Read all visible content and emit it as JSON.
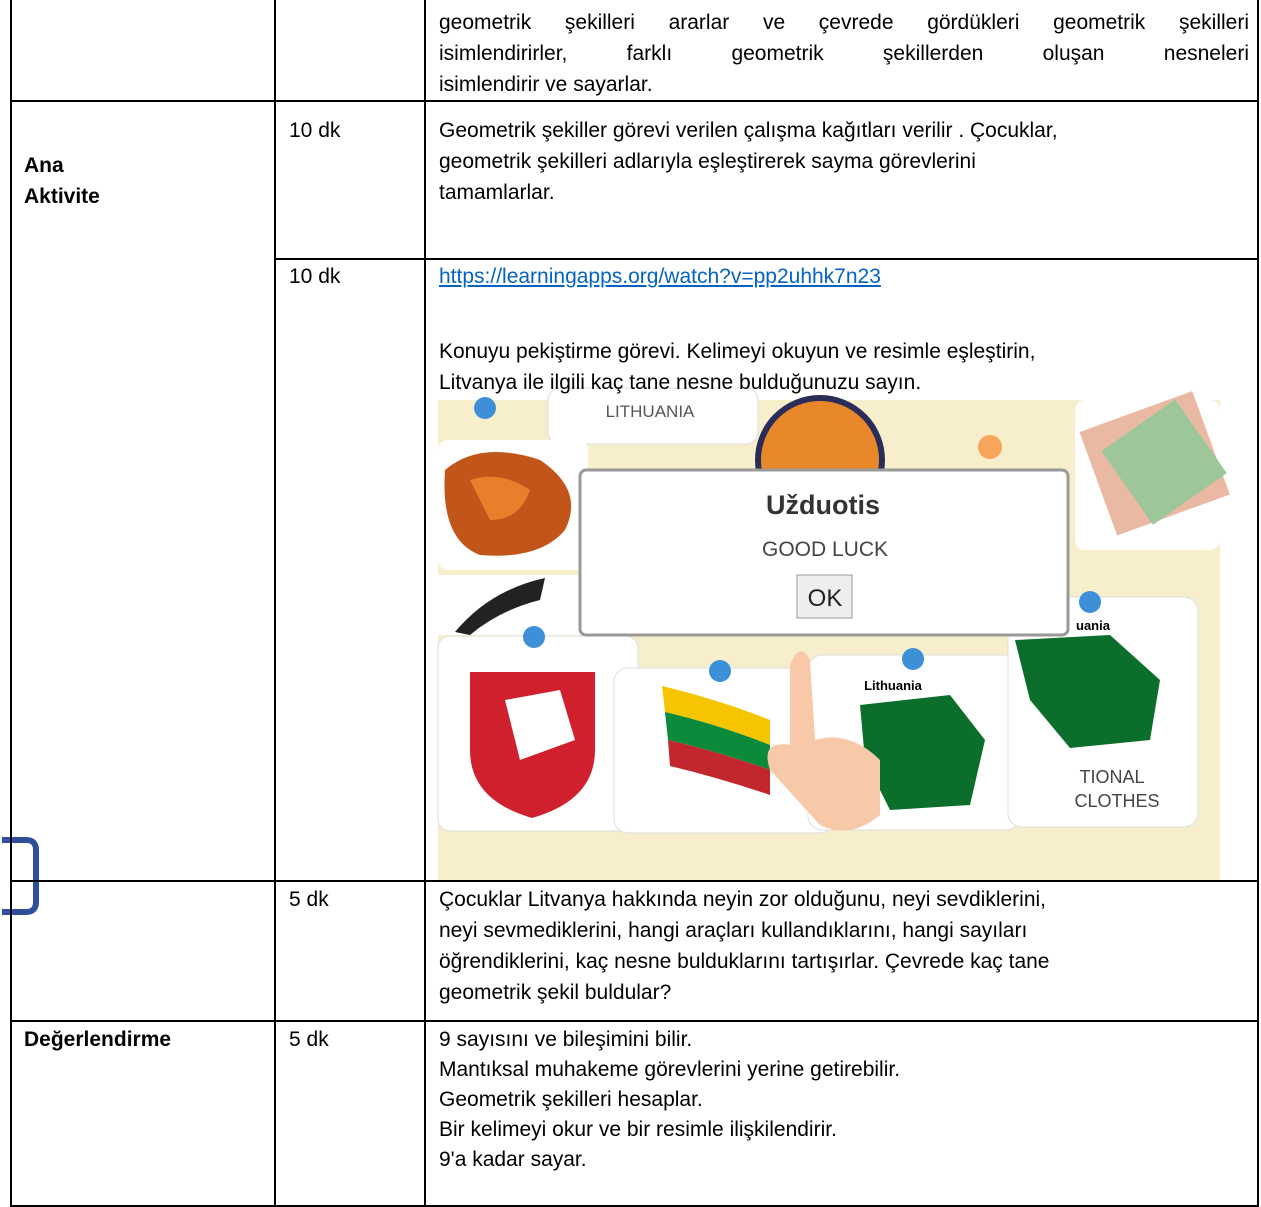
{
  "table": {
    "rows": [
      {
        "content": [
          "geometrik şekilleri ararlar ve çevrede gördükleri geometrik şekilleri",
          "isimlendirirler, farklı geometrik şekillerden oluşan nesneleri",
          "isimlendirir ve sayarlar."
        ]
      },
      {
        "label": [
          "Ana",
          "Aktivite"
        ],
        "duration": "10 dk",
        "content": [
          "Geometrik şekiller görevi verilen çalışma kağıtları verilir . Çocuklar,",
          "geometrik şekilleri adlarıyla eşleştirerek sayma görevlerini",
          "tamamlarlar."
        ]
      },
      {
        "duration": "10 dk",
        "link": "https://learningapps.org/watch?v=pp2uhhk7n23",
        "content": [
          "Konuyu pekiştirme görevi. Kelimeyi okuyun ve resimle eşleştirin,",
          "Litvanya ile ilgili kaç tane nesne bulduğunuzu sayın."
        ],
        "image": {
          "cards": [
            "LITHUANIA",
            "Lithuania",
            "uania",
            "TIONAL",
            "CLOTHES"
          ],
          "dialog": {
            "title": "Užduotis",
            "message": "GOOD LUCK",
            "button": "OK"
          }
        }
      },
      {
        "duration": "5 dk",
        "content": [
          "Çocuklar Litvanya hakkında neyin zor olduğunu, neyi sevdiklerini,",
          "neyi sevmediklerini, hangi araçları kullandıklarını, hangi sayıları",
          "öğrendiklerini, kaç nesne bulduklarını tartışırlar. Çevrede kaç tane",
          "geometrik şekil buldular?"
        ]
      },
      {
        "label": [
          "Değerlendirme"
        ],
        "duration": "5 dk",
        "content": [
          "9 sayısını ve bileşimini bilir.",
          "Mantıksal muhakeme görevlerini yerine getirebilir.",
          "Geometrik şekilleri hesaplar.",
          "Bir kelimeyi okur ve bir resimle ilişkilendirir.",
          "9'a kadar sayar."
        ]
      }
    ]
  }
}
